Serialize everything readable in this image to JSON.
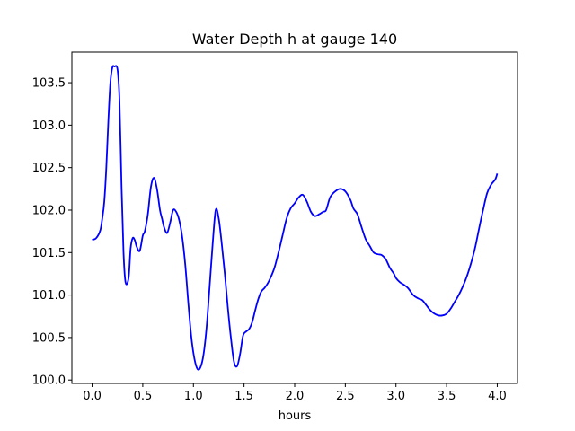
{
  "chart_data": {
    "type": "line",
    "title": "Water Depth h at gauge 140",
    "xlabel": "hours",
    "ylabel": "",
    "xlim": [
      -0.2,
      4.2
    ],
    "ylim": [
      99.96,
      103.86
    ],
    "xticks": [
      0.0,
      0.5,
      1.0,
      1.5,
      2.0,
      2.5,
      3.0,
      3.5,
      4.0
    ],
    "xtick_labels": [
      "0.0",
      "0.5",
      "1.0",
      "1.5",
      "2.0",
      "2.5",
      "3.0",
      "3.5",
      "4.0"
    ],
    "yticks": [
      100.0,
      100.5,
      101.0,
      101.5,
      102.0,
      102.5,
      103.0,
      103.5
    ],
    "ytick_labels": [
      "100.0",
      "100.5",
      "101.0",
      "101.5",
      "102.0",
      "102.5",
      "103.0",
      "103.5"
    ],
    "grid": false,
    "series": [
      {
        "color": "#0000ff",
        "x": [
          0.0,
          0.04,
          0.08,
          0.1,
          0.12,
          0.14,
          0.16,
          0.18,
          0.2,
          0.22,
          0.25,
          0.27,
          0.29,
          0.31,
          0.33,
          0.36,
          0.38,
          0.4,
          0.42,
          0.44,
          0.47,
          0.5,
          0.52,
          0.55,
          0.58,
          0.61,
          0.64,
          0.67,
          0.69,
          0.71,
          0.74,
          0.77,
          0.8,
          0.83,
          0.86,
          0.89,
          0.92,
          0.95,
          0.98,
          1.01,
          1.04,
          1.07,
          1.1,
          1.13,
          1.16,
          1.19,
          1.22,
          1.25,
          1.28,
          1.31,
          1.34,
          1.37,
          1.4,
          1.43,
          1.46,
          1.49,
          1.52,
          1.55,
          1.58,
          1.61,
          1.64,
          1.67,
          1.7,
          1.73,
          1.76,
          1.8,
          1.84,
          1.88,
          1.92,
          1.96,
          2.0,
          2.04,
          2.08,
          2.12,
          2.16,
          2.2,
          2.24,
          2.28,
          2.31,
          2.35,
          2.4,
          2.45,
          2.5,
          2.55,
          2.58,
          2.62,
          2.66,
          2.7,
          2.74,
          2.78,
          2.82,
          2.86,
          2.9,
          2.94,
          2.98,
          3.0,
          3.04,
          3.08,
          3.12,
          3.17,
          3.22,
          3.26,
          3.3,
          3.34,
          3.38,
          3.42,
          3.46,
          3.5,
          3.54,
          3.58,
          3.62,
          3.66,
          3.7,
          3.74,
          3.78,
          3.82,
          3.86,
          3.9,
          3.94,
          3.98,
          4.0
        ],
        "y": [
          101.65,
          101.67,
          101.76,
          101.9,
          102.1,
          102.5,
          103.05,
          103.5,
          103.68,
          103.69,
          103.66,
          103.3,
          102.3,
          101.5,
          101.15,
          101.2,
          101.55,
          101.67,
          101.65,
          101.57,
          101.52,
          101.7,
          101.75,
          101.95,
          102.27,
          102.38,
          102.25,
          102.0,
          101.9,
          101.8,
          101.73,
          101.85,
          102.0,
          101.98,
          101.88,
          101.68,
          101.35,
          100.9,
          100.5,
          100.25,
          100.13,
          100.15,
          100.3,
          100.62,
          101.1,
          101.6,
          102.0,
          101.9,
          101.6,
          101.25,
          100.85,
          100.5,
          100.22,
          100.16,
          100.3,
          100.52,
          100.57,
          100.6,
          100.68,
          100.82,
          100.95,
          101.04,
          101.08,
          101.13,
          101.2,
          101.32,
          101.5,
          101.7,
          101.9,
          102.02,
          102.08,
          102.15,
          102.18,
          102.1,
          101.98,
          101.93,
          101.95,
          101.98,
          102.0,
          102.15,
          102.22,
          102.25,
          102.22,
          102.12,
          102.02,
          101.95,
          101.8,
          101.66,
          101.58,
          101.5,
          101.48,
          101.47,
          101.42,
          101.32,
          101.25,
          101.2,
          101.15,
          101.12,
          101.08,
          101.0,
          100.96,
          100.94,
          100.88,
          100.82,
          100.78,
          100.76,
          100.76,
          100.78,
          100.84,
          100.92,
          101.0,
          101.1,
          101.22,
          101.37,
          101.55,
          101.78,
          102.0,
          102.2,
          102.3,
          102.36,
          102.43
        ]
      }
    ]
  }
}
